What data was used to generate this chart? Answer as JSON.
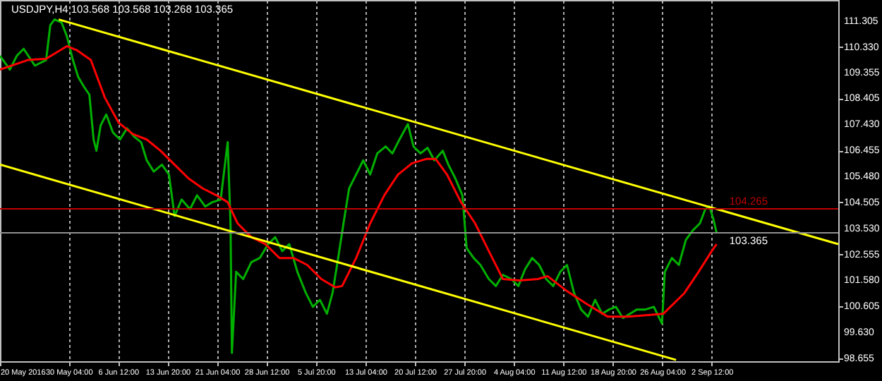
{
  "chart_data": {
    "type": "line",
    "title": "USDJPY,H4 103.568 103.568 103.268 103.365",
    "xlim": [
      "2016-05-20T00:00",
      "2016-09-21T06:00"
    ],
    "xticks": [
      {
        "value": "2016-05-20T00:00",
        "label": "20 May 2016"
      },
      {
        "value": "2016-05-30T04:00",
        "label": "30 May 04:00"
      },
      {
        "value": "2016-06-06T12:00",
        "label": "6 Jun 12:00"
      },
      {
        "value": "2016-06-13T20:00",
        "label": "13 Jun 20:00"
      },
      {
        "value": "2016-06-21T04:00",
        "label": "21 Jun 04:00"
      },
      {
        "value": "2016-06-28T12:00",
        "label": "28 Jun 12:00"
      },
      {
        "value": "2016-07-05T20:00",
        "label": "5 Jul 20:00"
      },
      {
        "value": "2016-07-13T04:00",
        "label": "13 Jul 04:00"
      },
      {
        "value": "2016-07-20T12:00",
        "label": "20 Jul 12:00"
      },
      {
        "value": "2016-07-27T20:00",
        "label": "27 Jul 20:00"
      },
      {
        "value": "2016-08-04T04:00",
        "label": "4 Aug 04:00"
      },
      {
        "value": "2016-08-11T12:00",
        "label": "11 Aug 12:00"
      },
      {
        "value": "2016-08-18T20:00",
        "label": "18 Aug 20:00"
      },
      {
        "value": "2016-08-26T04:00",
        "label": "26 Aug 04:00"
      },
      {
        "value": "2016-09-02T12:00",
        "label": "2 Sep 12:00"
      }
    ],
    "ylim": [
      98.55,
      112.09
    ],
    "yticks": [
      111.305,
      {
        "value": 110.33,
        "label": "110.330"
      },
      109.355,
      108.405,
      {
        "value": 107.43,
        "label": "107.430"
      },
      106.455,
      {
        "value": 105.48,
        "label": "105.480"
      },
      104.505,
      {
        "value": 103.53,
        "label": "103.530"
      },
      102.555,
      {
        "value": 101.58,
        "label": "101.580"
      },
      100.605,
      {
        "value": 99.63,
        "label": "99.630"
      },
      98.655
    ],
    "grid": "x",
    "series": [
      {
        "color": "#00b000",
        "x": [
          "2016-05-20T00:00",
          "2016-05-21T11:00",
          "2016-05-22T12:00",
          "2016-05-23T12:00",
          "2016-05-25T04:00",
          "2016-05-26T20:00",
          "2016-05-27T11:00",
          "2016-05-28T02:00",
          "2016-05-29T03:00",
          "2016-05-29T22:00",
          "2016-05-30T18:00",
          "2016-05-31T14:00",
          "2016-06-01T10:00",
          "2016-06-02T06:00",
          "2016-06-02T21:00",
          "2016-06-03T07:00",
          "2016-06-03T22:00",
          "2016-06-04T18:00",
          "2016-06-05T18:00",
          "2016-06-06T19:00",
          "2016-06-07T20:00",
          "2016-06-08T21:00",
          "2016-06-09T22:00",
          "2016-06-10T18:00",
          "2016-06-11T19:00",
          "2016-06-13T00:00",
          "2016-06-14T01:00",
          "2016-06-14T21:00",
          "2016-06-15T22:00",
          "2016-06-17T04:00",
          "2016-06-18T05:00",
          "2016-06-19T10:00",
          "2016-06-20T11:00",
          "2016-06-21T17:00",
          "2016-06-22T18:00",
          "2016-06-23T04:00",
          "2016-06-23T09:00",
          "2016-06-24T00:00",
          "2016-06-25T01:00",
          "2016-06-26T06:00",
          "2016-06-27T12:00",
          "2016-06-28T18:00",
          "2016-06-29T19:00",
          "2016-06-30T20:00",
          "2016-07-01T21:00",
          "2016-07-03T02:00",
          "2016-07-04T08:00",
          "2016-07-05T09:00",
          "2016-07-06T10:00",
          "2016-07-07T11:00",
          "2016-07-08T07:00",
          "2016-07-09T03:00",
          "2016-07-09T22:00",
          "2016-07-10T18:00",
          "2016-07-11T19:00",
          "2016-07-12T20:00",
          "2016-07-13T21:00",
          "2016-07-14T22:00",
          "2016-07-16T04:00",
          "2016-07-17T04:00",
          "2016-07-18T05:00",
          "2016-07-19T11:00",
          "2016-07-20T07:00",
          "2016-07-21T08:00",
          "2016-07-22T09:00",
          "2016-07-23T09:00",
          "2016-07-24T15:00",
          "2016-07-25T11:00",
          "2016-07-26T12:00",
          "2016-07-27T13:00",
          "2016-07-28T04:00",
          "2016-07-29T05:00",
          "2016-07-30T05:00",
          "2016-07-31T11:00",
          "2016-08-01T12:00",
          "2016-08-02T13:00",
          "2016-08-03T19:00",
          "2016-08-04T20:00",
          "2016-08-05T20:00",
          "2016-08-06T21:00",
          "2016-08-07T22:00",
          "2016-08-08T23:00",
          "2016-08-10T00:00",
          "2016-08-11T01:00",
          "2016-08-12T01:00",
          "2016-08-13T02:00",
          "2016-08-14T03:00",
          "2016-08-15T04:00",
          "2016-08-16T05:00",
          "2016-08-17T06:00",
          "2016-08-18T07:00",
          "2016-08-19T07:00",
          "2016-08-20T08:00",
          "2016-08-21T09:00",
          "2016-08-22T10:00",
          "2016-08-23T16:00",
          "2016-08-24T22:00",
          "2016-08-26T03:00",
          "2016-08-26T13:00",
          "2016-08-27T14:00",
          "2016-08-28T15:00",
          "2016-08-29T16:00",
          "2016-08-30T17:00",
          "2016-08-31T18:00",
          "2016-09-01T13:00",
          "2016-09-02T04:00",
          "2016-09-02T19:00",
          "2016-09-03T05:00"
        ],
        "values": [
          110.0,
          109.48,
          110.0,
          110.26,
          109.63,
          109.84,
          111.15,
          111.36,
          111.25,
          110.73,
          109.89,
          109.21,
          108.85,
          108.54,
          106.86,
          106.44,
          107.39,
          107.8,
          107.12,
          106.86,
          107.28,
          106.97,
          106.76,
          106.08,
          105.66,
          105.92,
          105.55,
          103.99,
          104.61,
          104.25,
          104.77,
          104.35,
          104.51,
          104.61,
          106.76,
          103.72,
          98.86,
          101.9,
          101.63,
          102.26,
          102.42,
          102.94,
          103.2,
          102.68,
          102.94,
          101.9,
          101.11,
          100.59,
          100.85,
          100.33,
          101.11,
          102.42,
          103.72,
          105.03,
          105.55,
          106.08,
          105.55,
          106.34,
          106.6,
          106.34,
          106.86,
          107.44,
          106.6,
          106.34,
          106.55,
          106.08,
          106.44,
          105.92,
          105.4,
          104.77,
          102.79,
          102.42,
          102.16,
          101.63,
          101.37,
          101.79,
          101.63,
          101.37,
          102.0,
          102.42,
          102.16,
          101.63,
          101.37,
          101.9,
          102.16,
          101.11,
          100.49,
          100.22,
          100.85,
          100.33,
          100.49,
          100.59,
          100.17,
          100.33,
          100.49,
          100.49,
          100.59,
          99.96,
          101.9,
          102.42,
          102.16,
          103.1,
          103.46,
          103.72,
          104.25,
          104.35,
          103.83,
          103.365
        ]
      },
      {
        "color": "#ff0000",
        "x": [
          "2016-05-20T00:00",
          "2016-05-24T03:00",
          "2016-05-26T20:00",
          "2016-05-29T22:00",
          "2016-05-31T09:00",
          "2016-06-02T11:00",
          "2016-06-04T13:00",
          "2016-06-06T14:00",
          "2016-06-08T16:00",
          "2016-06-10T18:00",
          "2016-06-12T19:00",
          "2016-06-14T21:00",
          "2016-06-16T23:00",
          "2016-06-19T01:00",
          "2016-06-21T02:00",
          "2016-06-22T18:00",
          "2016-06-24T05:00",
          "2016-06-26T06:00",
          "2016-06-28T08:00",
          "2016-06-30T10:00",
          "2016-07-02T12:00",
          "2016-07-04T13:00",
          "2016-07-06T15:00",
          "2016-07-08T17:00",
          "2016-07-09T17:00",
          "2016-07-11T19:00",
          "2016-07-13T21:00",
          "2016-07-15T23:00",
          "2016-07-18T00:00",
          "2016-07-20T02:00",
          "2016-07-22T04:00",
          "2016-07-23T14:00",
          "2016-07-25T06:00",
          "2016-07-27T08:00",
          "2016-07-29T10:00",
          "2016-07-31T11:00",
          "2016-08-02T13:00",
          "2016-08-05T01:00",
          "2016-08-07T17:00",
          "2016-08-09T04:00",
          "2016-08-11T21:00",
          "2016-08-14T23:00",
          "2016-08-18T02:00",
          "2016-08-21T04:00",
          "2016-08-26T08:00",
          "2016-08-29T11:00",
          "2016-08-31T13:00",
          "2016-09-02T12:00",
          "2016-09-03T05:00"
        ],
        "values": [
          109.48,
          109.84,
          109.89,
          110.36,
          110.21,
          109.84,
          108.43,
          107.49,
          107.07,
          106.86,
          106.44,
          105.92,
          105.4,
          105.03,
          104.77,
          104.51,
          103.72,
          103.2,
          102.94,
          102.42,
          102.42,
          102.16,
          101.63,
          101.32,
          101.37,
          102.42,
          103.72,
          104.77,
          105.55,
          105.97,
          106.13,
          106.13,
          105.55,
          104.51,
          103.72,
          102.68,
          101.63,
          101.58,
          101.63,
          101.74,
          101.21,
          100.7,
          100.22,
          100.22,
          100.33,
          101.11,
          101.9,
          102.68,
          102.94
        ]
      },
      {
        "color": "#ffff00",
        "x": [
          "2016-05-28T17:00",
          "2016-09-21T06:00"
        ],
        "values": [
          111.36,
          102.94
        ]
      },
      {
        "color": "#ffff00",
        "x": [
          "2016-05-20T00:00",
          "2016-08-28T05:00"
        ],
        "values": [
          105.92,
          98.6
        ]
      }
    ],
    "ref_lines": [
      {
        "axis": "y",
        "value": 104.265,
        "label": "104.265",
        "color": "#c00000"
      },
      {
        "axis": "y",
        "value": 103.365,
        "label": "103.365",
        "color": "#909090"
      }
    ]
  }
}
